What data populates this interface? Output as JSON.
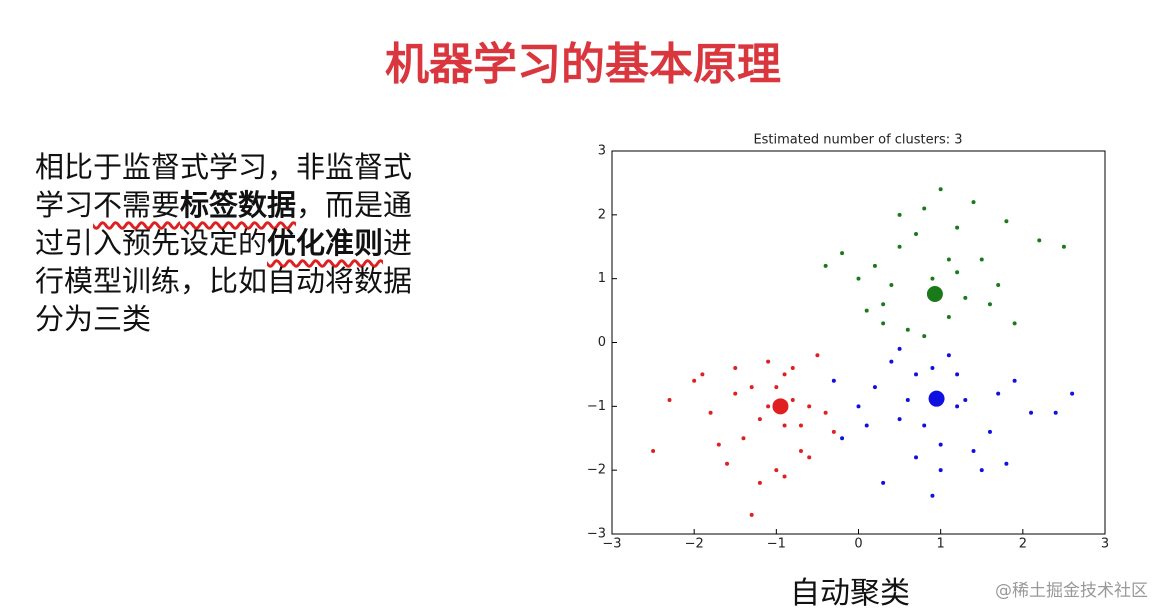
{
  "title": "机器学习的基本原理",
  "paragraph": [
    {
      "text": "相比于监督式学习，非监督式学习",
      "bold": false,
      "underline": false
    },
    {
      "text": "不需要",
      "bold": false,
      "underline": true
    },
    {
      "text": "标签数据",
      "bold": true,
      "underline": true
    },
    {
      "text": "，而是通过引入预先设定的",
      "bold": false,
      "underline": false
    },
    {
      "text": "优化准则",
      "bold": true,
      "underline": true
    },
    {
      "text": "进行模型训练，比如自动将数据分为三类",
      "bold": false,
      "underline": false
    }
  ],
  "chart_data": {
    "type": "scatter",
    "title": "Estimated number of clusters: 3",
    "xlim": [
      -3,
      3
    ],
    "ylim": [
      -3,
      3
    ],
    "xticks": [
      {
        "value": -3,
        "label": "−3"
      },
      {
        "value": -2,
        "label": "−2"
      },
      {
        "value": -1,
        "label": "−1"
      },
      0,
      1,
      2,
      3
    ],
    "yticks": [
      {
        "value": -3,
        "label": "−3"
      },
      {
        "value": -2,
        "label": "−2"
      },
      {
        "value": -1,
        "label": "−1"
      },
      0,
      1,
      2,
      3
    ],
    "series": [
      {
        "color": "#1a7a1a",
        "marker_size": 2,
        "x": [
          0.2,
          0.5,
          0.8,
          1.2,
          1.5,
          0.3,
          0.9,
          1.1,
          1.7,
          0.6,
          1.3,
          0.0,
          -0.2,
          1.9,
          2.2,
          0.4,
          1.0,
          0.7,
          1.4,
          0.1,
          1.6,
          0.8,
          1.2,
          2.5,
          0.5,
          -0.4,
          1.8,
          0.9,
          1.1,
          0.3
        ],
        "values": [
          1.2,
          1.5,
          2.1,
          1.8,
          1.3,
          0.6,
          1.0,
          0.4,
          0.9,
          0.2,
          0.7,
          1.0,
          1.4,
          0.3,
          1.6,
          0.9,
          2.4,
          1.7,
          2.2,
          0.5,
          0.6,
          0.1,
          1.1,
          1.5,
          2.0,
          1.2,
          1.9,
          0.8,
          1.3,
          0.3
        ]
      },
      {
        "color": "#1010e0",
        "marker_size": 2,
        "x": [
          0.2,
          0.5,
          0.9,
          1.3,
          1.6,
          0.0,
          0.7,
          1.1,
          1.9,
          0.4,
          1.5,
          -0.2,
          2.1,
          0.8,
          1.2,
          0.3,
          1.0,
          1.7,
          0.6,
          2.4,
          -0.3,
          1.4,
          0.9,
          0.5,
          1.8,
          0.1,
          1.2,
          2.6,
          0.7,
          1.0
        ],
        "values": [
          -0.7,
          -1.2,
          -0.4,
          -0.9,
          -1.4,
          -1.0,
          -1.8,
          -0.2,
          -0.6,
          -0.3,
          -2.0,
          -1.5,
          -1.1,
          -1.3,
          -0.5,
          -2.2,
          -1.6,
          -0.8,
          -0.9,
          -1.1,
          -0.6,
          -1.7,
          -2.4,
          -0.1,
          -1.9,
          -1.3,
          -1.0,
          -0.8,
          -0.5,
          -2.0
        ]
      },
      {
        "color": "#e02020",
        "marker_size": 2,
        "x": [
          -1.5,
          -1.2,
          -0.9,
          -0.6,
          -0.3,
          -1.8,
          -1.1,
          -0.7,
          -1.4,
          -0.8,
          -2.0,
          -1.0,
          -0.5,
          -1.6,
          -1.3,
          -0.9,
          -2.3,
          -0.4,
          -1.2,
          -1.7,
          -0.8,
          -1.0,
          -0.6,
          -1.5,
          -1.1,
          -2.5,
          -0.7,
          -1.3,
          -0.9,
          -1.9
        ],
        "values": [
          -0.8,
          -1.2,
          -0.5,
          -1.0,
          -1.4,
          -1.1,
          -0.3,
          -1.7,
          -1.5,
          -0.9,
          -0.6,
          -2.0,
          -0.2,
          -1.9,
          -0.7,
          -1.3,
          -0.9,
          -1.1,
          -2.2,
          -1.6,
          -0.4,
          -0.7,
          -1.8,
          -0.4,
          -1.0,
          -1.7,
          -1.3,
          -2.7,
          -2.1,
          -0.5
        ]
      },
      {
        "color": "#1a7a1a",
        "marker_size": 8,
        "x": [
          0.93
        ],
        "values": [
          0.76
        ]
      },
      {
        "color": "#1010e0",
        "marker_size": 8,
        "x": [
          0.95
        ],
        "values": [
          -0.88
        ]
      },
      {
        "color": "#e02020",
        "marker_size": 8,
        "x": [
          -0.95
        ],
        "values": [
          -1.0
        ]
      }
    ]
  },
  "caption": "自动聚类",
  "watermark": "@稀土掘金技术社区"
}
